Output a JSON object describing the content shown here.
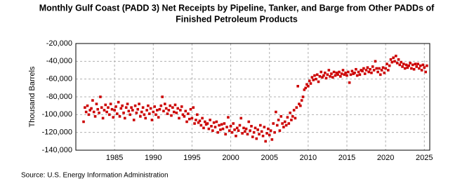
{
  "chart_data": {
    "type": "scatter",
    "title": [
      "Monthly Gulf Coast (PADD 3) Net Receipts by Pipeline, Tanker, and Barge from Other PADDs of",
      "Finished Petroleum Products"
    ],
    "y_label": "Thousand Barrels",
    "source": "Source: U.S. Energy Information Administration",
    "color": "#cc0000",
    "grid": true,
    "xlim": [
      1980,
      2025.7
    ],
    "xticks": [
      1985,
      1990,
      1995,
      2000,
      2005,
      2010,
      2015,
      2020,
      2025
    ],
    "ylim": [
      -140000,
      -20000
    ],
    "yticks": [
      {
        "value": -140000,
        "label": "-140,000"
      },
      {
        "value": -120000,
        "label": "-120,000"
      },
      {
        "value": -100000,
        "label": "-100,000"
      },
      {
        "value": -80000,
        "label": "-80,000"
      },
      {
        "value": -60000,
        "label": "-60,000"
      },
      {
        "value": -40000,
        "label": "-40,000"
      },
      {
        "value": -20000,
        "label": "-20,000"
      }
    ],
    "x": [
      1981,
      1981.17,
      1981.33,
      1981.5,
      1981.67,
      1981.83,
      1982,
      1982.17,
      1982.33,
      1982.5,
      1982.67,
      1982.83,
      1983,
      1983.17,
      1983.33,
      1983.5,
      1983.67,
      1983.83,
      1984,
      1984.17,
      1984.33,
      1984.5,
      1984.67,
      1984.83,
      1985,
      1985.17,
      1985.33,
      1985.5,
      1985.67,
      1985.83,
      1986,
      1986.17,
      1986.33,
      1986.5,
      1986.67,
      1986.83,
      1987,
      1987.17,
      1987.33,
      1987.5,
      1987.67,
      1987.83,
      1988,
      1988.17,
      1988.33,
      1988.5,
      1988.67,
      1988.83,
      1989,
      1989.17,
      1989.33,
      1989.5,
      1989.67,
      1989.83,
      1990,
      1990.17,
      1990.33,
      1990.5,
      1990.67,
      1990.83,
      1991,
      1991.17,
      1991.33,
      1991.5,
      1991.67,
      1991.83,
      1992,
      1992.17,
      1992.33,
      1992.5,
      1992.67,
      1992.83,
      1993,
      1993.17,
      1993.33,
      1993.5,
      1993.67,
      1993.83,
      1994,
      1994.17,
      1994.33,
      1994.5,
      1994.67,
      1994.83,
      1995,
      1995.17,
      1995.33,
      1995.5,
      1995.67,
      1995.83,
      1996,
      1996.17,
      1996.33,
      1996.5,
      1996.67,
      1996.83,
      1997,
      1997.17,
      1997.33,
      1997.5,
      1997.67,
      1997.83,
      1998,
      1998.17,
      1998.33,
      1998.5,
      1998.67,
      1998.83,
      1999,
      1999.17,
      1999.33,
      1999.5,
      1999.67,
      1999.83,
      2000,
      2000.17,
      2000.33,
      2000.5,
      2000.67,
      2000.83,
      2001,
      2001.17,
      2001.33,
      2001.5,
      2001.67,
      2001.83,
      2002,
      2002.17,
      2002.33,
      2002.5,
      2002.67,
      2002.83,
      2003,
      2003.17,
      2003.33,
      2003.5,
      2003.67,
      2003.83,
      2004,
      2004.17,
      2004.33,
      2004.5,
      2004.67,
      2004.83,
      2005,
      2005.17,
      2005.33,
      2005.5,
      2005.67,
      2005.83,
      2006,
      2006.17,
      2006.33,
      2006.5,
      2006.67,
      2006.83,
      2007,
      2007.17,
      2007.33,
      2007.5,
      2007.67,
      2007.83,
      2008,
      2008.17,
      2008.33,
      2008.5,
      2008.67,
      2008.83,
      2009,
      2009.17,
      2009.33,
      2009.5,
      2009.67,
      2009.83,
      2010,
      2010.17,
      2010.33,
      2010.5,
      2010.67,
      2010.83,
      2011,
      2011.17,
      2011.33,
      2011.5,
      2011.67,
      2011.83,
      2012,
      2012.17,
      2012.33,
      2012.5,
      2012.67,
      2012.83,
      2013,
      2013.17,
      2013.33,
      2013.5,
      2013.67,
      2013.83,
      2014,
      2014.17,
      2014.33,
      2014.5,
      2014.67,
      2014.83,
      2015,
      2015.17,
      2015.33,
      2015.5,
      2015.67,
      2015.83,
      2016,
      2016.17,
      2016.33,
      2016.5,
      2016.67,
      2016.83,
      2017,
      2017.17,
      2017.33,
      2017.5,
      2017.67,
      2017.83,
      2018,
      2018.17,
      2018.33,
      2018.5,
      2018.67,
      2018.83,
      2019,
      2019.17,
      2019.33,
      2019.5,
      2019.67,
      2019.83,
      2020,
      2020.17,
      2020.33,
      2020.5,
      2020.67,
      2020.83,
      2021,
      2021.17,
      2021.33,
      2021.5,
      2021.67,
      2021.83,
      2022,
      2022.17,
      2022.33,
      2022.5,
      2022.67,
      2022.83,
      2023,
      2023.17,
      2023.33,
      2023.5,
      2023.67,
      2023.83,
      2024,
      2024.17,
      2024.33,
      2024.5,
      2024.67,
      2024.83,
      2025,
      2025.17,
      2025.33
    ],
    "values": [
      -108000,
      -92000,
      -97000,
      -90000,
      -100000,
      -95000,
      -93000,
      -84000,
      -97000,
      -102000,
      -88000,
      -94000,
      -98000,
      -80000,
      -92000,
      -104000,
      -95000,
      -89000,
      -97000,
      -92000,
      -100000,
      -88000,
      -94000,
      -103000,
      -95000,
      -91000,
      -99000,
      -86000,
      -102000,
      -93000,
      -90000,
      -98000,
      -104000,
      -92000,
      -88000,
      -96000,
      -100000,
      -92000,
      -95000,
      -106000,
      -90000,
      -98000,
      -94000,
      -88000,
      -102000,
      -97000,
      -92000,
      -100000,
      -104000,
      -95000,
      -90000,
      -99000,
      -93000,
      -106000,
      -97000,
      -91000,
      -100000,
      -95000,
      -103000,
      -94000,
      -90000,
      -80000,
      -96000,
      -88000,
      -93000,
      -99000,
      -95000,
      -90000,
      -101000,
      -92000,
      -97000,
      -89000,
      -98000,
      -93000,
      -104000,
      -95000,
      -91000,
      -100000,
      -102000,
      -96000,
      -108000,
      -99000,
      -105000,
      -94000,
      -104000,
      -92000,
      -110000,
      -106000,
      -100000,
      -109000,
      -107000,
      -112000,
      -104000,
      -115000,
      -108000,
      -111000,
      -110000,
      -116000,
      -106000,
      -113000,
      -118000,
      -109000,
      -114000,
      -108000,
      -120000,
      -112000,
      -117000,
      -111000,
      -116000,
      -110000,
      -122000,
      -114000,
      -103000,
      -118000,
      -113000,
      -120000,
      -110000,
      -117000,
      -124000,
      -115000,
      -118000,
      -112000,
      -104000,
      -121000,
      -115000,
      -119000,
      -116000,
      -122000,
      -108000,
      -118000,
      -113000,
      -125000,
      -120000,
      -115000,
      -127000,
      -117000,
      -122000,
      -112000,
      -119000,
      -124000,
      -114000,
      -130000,
      -121000,
      -116000,
      -123000,
      -118000,
      -128000,
      -110000,
      -120000,
      -97000,
      -112000,
      -106000,
      -118000,
      -102000,
      -110000,
      -114000,
      -108000,
      -112000,
      -103000,
      -110000,
      -98000,
      -106000,
      -102000,
      -95000,
      -104000,
      -92000,
      -68000,
      -88000,
      -90000,
      -84000,
      -80000,
      -72000,
      -70000,
      -66000,
      -68000,
      -62000,
      -65000,
      -58000,
      -61000,
      -56000,
      -60000,
      -55000,
      -63000,
      -57000,
      -52000,
      -58000,
      -56000,
      -53000,
      -59000,
      -55000,
      -50000,
      -57000,
      -54000,
      -58000,
      -52000,
      -56000,
      -53000,
      -55000,
      -52000,
      -57000,
      -54000,
      -50000,
      -55000,
      -53000,
      -56000,
      -52000,
      -64000,
      -55000,
      -51000,
      -54000,
      -53000,
      -49000,
      -56000,
      -52000,
      -55000,
      -50000,
      -51000,
      -48000,
      -54000,
      -50000,
      -47000,
      -52000,
      -49000,
      -53000,
      -46000,
      -50000,
      -40000,
      -48000,
      -52000,
      -48000,
      -55000,
      -50000,
      -47000,
      -53000,
      -48000,
      -43000,
      -50000,
      -45000,
      -38000,
      -41000,
      -36000,
      -40000,
      -34000,
      -42000,
      -38000,
      -44000,
      -41000,
      -46000,
      -43000,
      -48000,
      -44000,
      -47000,
      -45000,
      -42000,
      -48000,
      -44000,
      -49000,
      -43000,
      -46000,
      -43000,
      -48000,
      -45000,
      -50000,
      -44000,
      -47000,
      -52000,
      -45000
    ]
  }
}
